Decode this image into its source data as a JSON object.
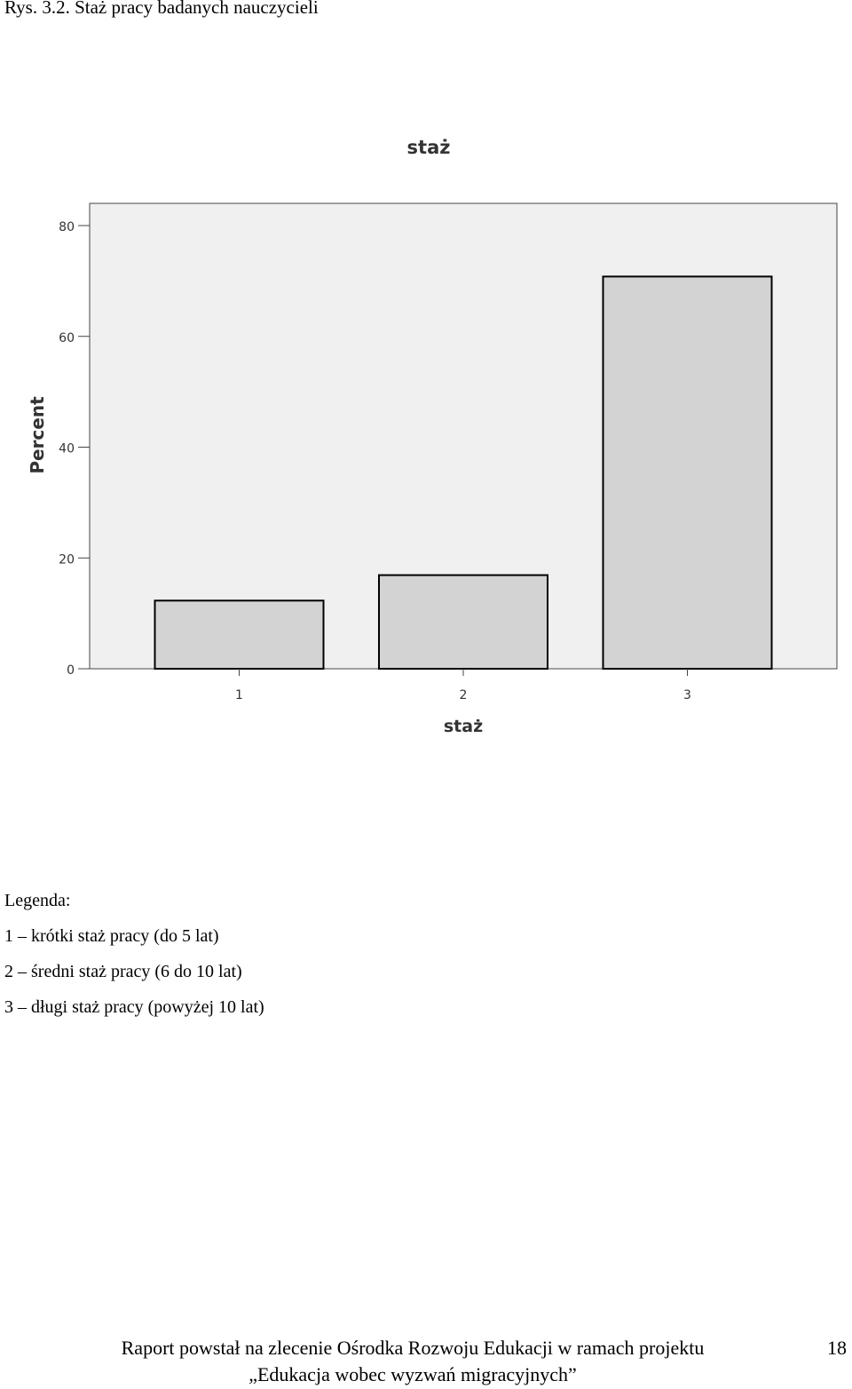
{
  "caption": "Rys. 3.2. Staż pracy badanych nauczycieli",
  "chart_data": {
    "type": "bar",
    "title": "staż",
    "xlabel": "staż",
    "ylabel": "Percent",
    "categories": [
      "1",
      "2",
      "3"
    ],
    "values": [
      12.3,
      16.9,
      70.8
    ],
    "ylim": [
      0,
      84
    ],
    "yticks": [
      0,
      20,
      40,
      60,
      80
    ],
    "grid": false,
    "colors": {
      "bar_fill": "#d3d3d3",
      "bar_stroke": "#000000",
      "plot_bg": "#f0f0f0",
      "plot_border": "#444444"
    }
  },
  "legend": {
    "heading": "Legenda:",
    "items": [
      "1 – krótki staż pracy (do 5 lat)",
      "2 – średni staż pracy (6 do 10 lat)",
      "3 – długi staż pracy (powyżej 10 lat)"
    ]
  },
  "footer": {
    "line1": "Raport powstał na zlecenie Ośrodka Rozwoju Edukacji w ramach projektu",
    "line2": "„Edukacja wobec wyzwań migracyjnych”",
    "page_number": "18"
  }
}
